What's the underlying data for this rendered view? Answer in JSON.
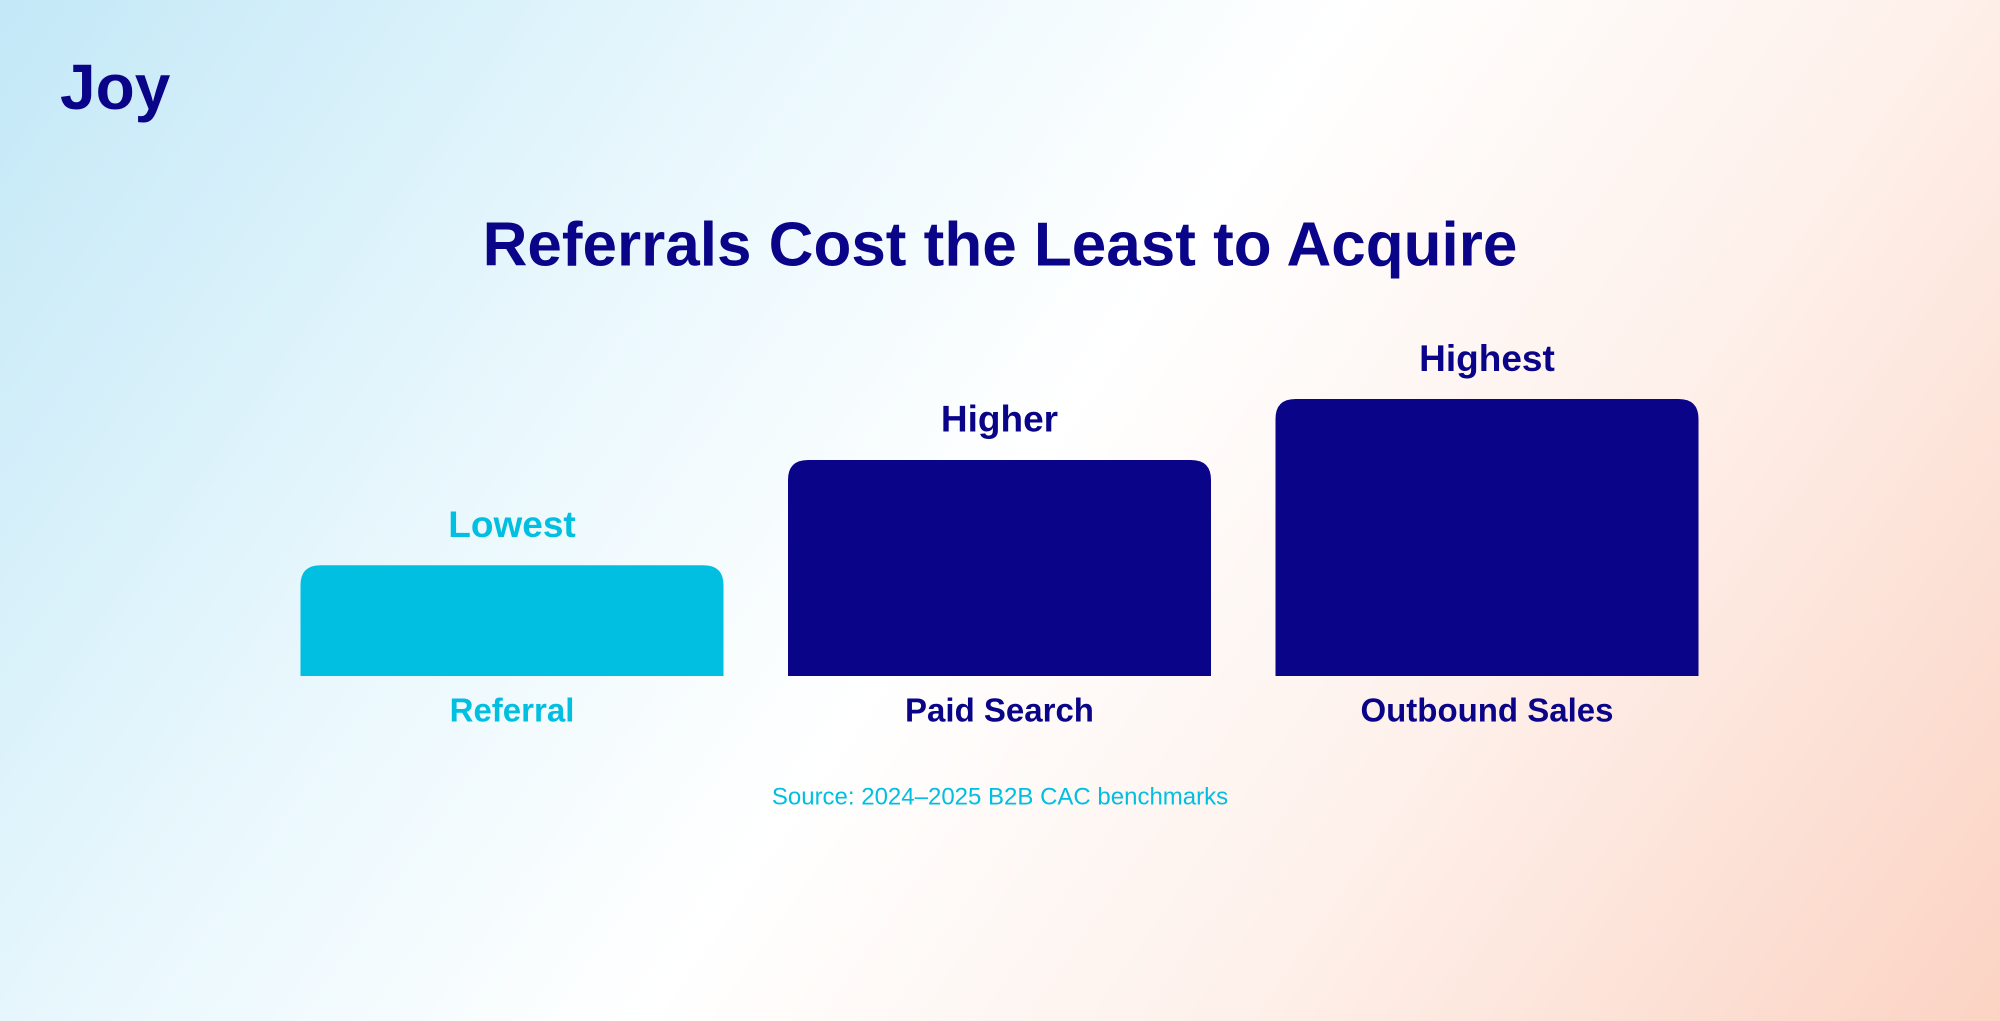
{
  "logo": "Joy",
  "chart_data": {
    "type": "bar",
    "title": "Referrals Cost the Least to Acquire",
    "categories": [
      "Referral",
      "Paid Search",
      "Outbound Sales"
    ],
    "values": [
      40,
      78,
      100
    ],
    "value_labels": [
      "Lowest",
      "Higher",
      "Highest"
    ],
    "colors": [
      "#00bfe0",
      "#0a0489",
      "#0a0489"
    ],
    "ylim": [
      0,
      100
    ],
    "source": "Source: 2024–2025 B2B CAC benchmarks"
  }
}
